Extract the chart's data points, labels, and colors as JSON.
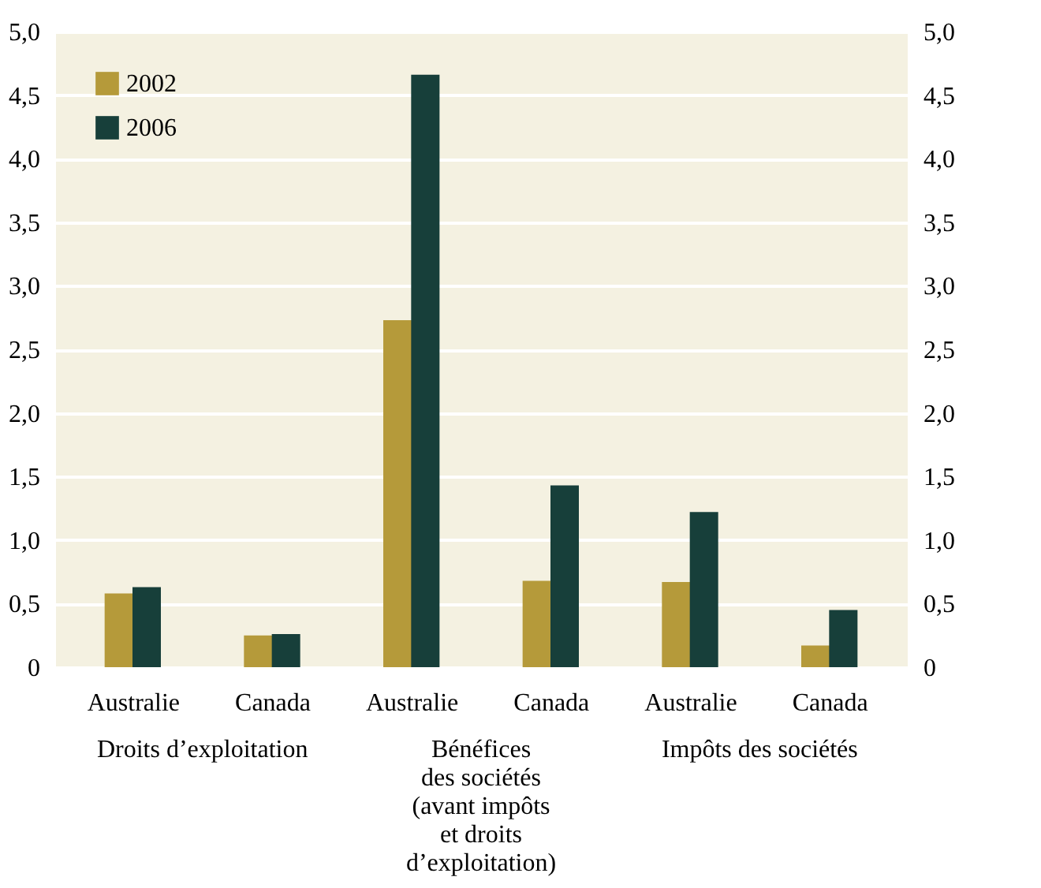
{
  "chart_data": {
    "type": "bar",
    "categories": [
      "Australie",
      "Canada",
      "Australie",
      "Canada",
      "Australie",
      "Canada"
    ],
    "series": [
      {
        "name": "2002",
        "color": "#b59a3a",
        "values": [
          0.58,
          0.25,
          2.73,
          0.68,
          0.67,
          0.17
        ]
      },
      {
        "name": "2006",
        "color": "#173f3a",
        "values": [
          0.63,
          0.26,
          4.66,
          1.43,
          1.22,
          0.45
        ]
      }
    ],
    "annotations": [
      "Droits d’exploitation",
      "Bénéfices\ndes sociétés\n(avant impôts\net droits\nd’exploitation)",
      "Impôts des sociétés"
    ],
    "ylim": [
      0,
      5
    ],
    "yticks": [
      0,
      {
        "value": 0.5,
        "label": "0,5"
      },
      {
        "value": 1,
        "label": "1,0"
      },
      {
        "value": 1.5,
        "label": "1,5"
      },
      {
        "value": 2,
        "label": "2,0"
      },
      {
        "value": 2.5,
        "label": "2,5"
      },
      {
        "value": 3,
        "label": "3,0"
      },
      {
        "value": 3.5,
        "label": "3,5"
      },
      {
        "value": 4,
        "label": "4,0"
      },
      {
        "value": 4.5,
        "label": "4,5"
      },
      {
        "value": 5,
        "label": "5,0"
      }
    ],
    "y2lim": [
      0,
      5
    ],
    "y2ticks": [
      0,
      {
        "value": 0.5,
        "label": "0,5"
      },
      {
        "value": 1,
        "label": "1,0"
      },
      {
        "value": 1.5,
        "label": "1,5"
      },
      {
        "value": 2,
        "label": "2,0"
      },
      {
        "value": 2.5,
        "label": "2,5"
      },
      {
        "value": 3,
        "label": "3,0"
      },
      {
        "value": 3.5,
        "label": "3,5"
      },
      {
        "value": 4,
        "label": "4,0"
      },
      {
        "value": 4.5,
        "label": "4,5"
      },
      {
        "value": 5,
        "label": "5,0"
      }
    ],
    "grid": "y",
    "legend": "top left"
  }
}
